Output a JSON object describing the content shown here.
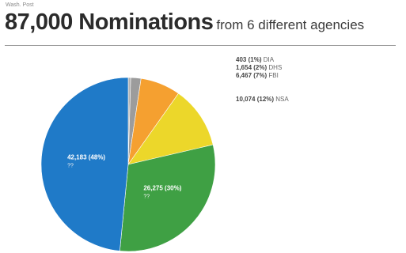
{
  "header": {
    "source": "Wash. Post",
    "title_main": "87,000 Nominations",
    "title_sub": "from 6 different agencies"
  },
  "chart_data": {
    "type": "pie",
    "title": "87,000 Nominations from 6 different agencies",
    "slices": [
      {
        "agency": "DIA",
        "value": 403,
        "value_label": "403",
        "percent_label": "(1%)",
        "color": "#b0b0b0"
      },
      {
        "agency": "DHS",
        "value": 1654,
        "value_label": "1,654",
        "percent_label": "(2%)",
        "color": "#9c9c9c"
      },
      {
        "agency": "FBI",
        "value": 6467,
        "value_label": "6,467",
        "percent_label": "(7%)",
        "color": "#f5a030"
      },
      {
        "agency": "NSA",
        "value": 10074,
        "value_label": "10,074",
        "percent_label": "(12%)",
        "color": "#ecd72a"
      },
      {
        "agency": "",
        "value": 26275,
        "value_label": "26,275",
        "percent_label": "(30%)",
        "color": "#3fa044"
      },
      {
        "agency": "",
        "value": 42183,
        "value_label": "42,183",
        "percent_label": "(48%)",
        "color": "#1f7ac8"
      }
    ],
    "inner_labels": [
      {
        "index": 5,
        "line1": "42,183 (48%)",
        "line2": "??"
      },
      {
        "index": 4,
        "line1": "26,275 (30%)",
        "line2": "??"
      }
    ],
    "legend_placement": "right"
  }
}
